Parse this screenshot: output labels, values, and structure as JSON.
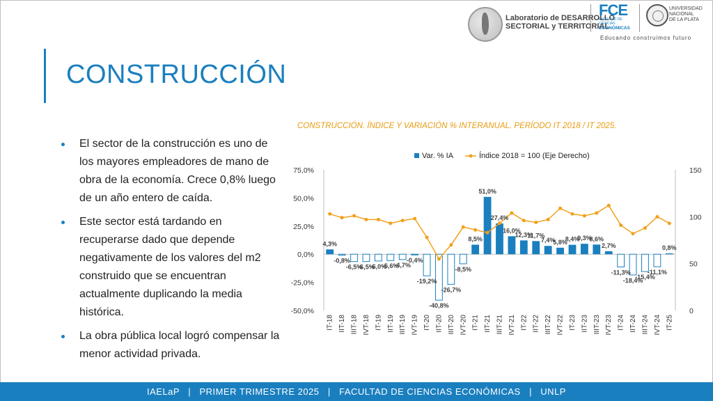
{
  "header": {
    "lab_name_line1": "Laboratorio de DESARROLLO",
    "lab_name_line2": "SECTORIAL y TERRITORIAL",
    "fce_mark": "FCE",
    "fce_sub": "FACULTAD DE CIENCIAS",
    "fce_eco": "ECONÓMICAS",
    "unlp_line1": "UNIVERSIDAD",
    "unlp_line2": "NACIONAL",
    "unlp_line3": "DE LA PLATA",
    "slogan": "Educando construimos futuro"
  },
  "page_title": "CONSTRUCCIÓN",
  "bullets": [
    "El sector de la construcción es uno de los mayores empleadores de mano de obra de la economía. Crece 0,8% luego de un año entero de caída.",
    "Este sector está tardando en recuperarse dado que depende negativamente de los valores del m2 construido que se encuentran actualmente duplicando la media histórica.",
    "La obra pública local logró compensar la menor actividad privada."
  ],
  "colors": {
    "accent": "#1a7fbf",
    "bar": "#1a7fbf",
    "line": "#f0a11b",
    "title": "#e89a10"
  },
  "chart_data": {
    "type": "bar+line",
    "title": "CONSTRUCCIÓN. ÍNDICE Y VARIACIÓN % INTERANUAL. PERÍODO IT 2018 / IT 2025.",
    "legend_placement": "top",
    "categories": [
      "IT-18",
      "IIT-18",
      "IIIT-18",
      "IVT-18",
      "IT-19",
      "IIT-19",
      "IIIT-19",
      "IVT-19",
      "IT-20",
      "IIT-20",
      "IIIT-20",
      "IVT-20",
      "IT-21",
      "IIT-21",
      "IIIT-21",
      "IVT-21",
      "IT-22",
      "IIT-22",
      "IIIT-22",
      "IVT-22",
      "IT-23",
      "IIT-23",
      "IIIT-23",
      "IVT-23",
      "IT-24",
      "IIT-24",
      "IIIT-24",
      "IVT-24",
      "IT-25"
    ],
    "y_left": {
      "ticks": [
        "75,0%",
        "50,0%",
        "25,0%",
        "0,0%",
        "-25,0%",
        "-50,0%"
      ],
      "range": [
        -50,
        75
      ]
    },
    "y_right": {
      "ticks": [
        "150",
        "100",
        "50",
        "0"
      ],
      "range": [
        0,
        150
      ]
    },
    "series": [
      {
        "name": "Var. % IA",
        "kind": "bar",
        "values": [
          4.3,
          -0.8,
          -6.5,
          -6.5,
          -6.0,
          -5.6,
          -4.7,
          -0.4,
          -19.2,
          -40.8,
          -26.7,
          -8.5,
          8.5,
          51.0,
          27.4,
          16.0,
          12.3,
          11.7,
          7.4,
          5.8,
          8.4,
          9.3,
          8.6,
          2.7,
          -11.3,
          -18.4,
          -15.4,
          -11.1,
          0.8
        ],
        "labels": [
          "4,3%",
          "-0,8%",
          "-6,5%",
          "-6,5%",
          "-6,0%",
          "-5,6%",
          "-4,7%",
          "-0,4%",
          "-19,2%",
          "-40,8%",
          "-26,7%",
          "-8,5%",
          "8,5%",
          "51,0%",
          "27,4%",
          "16,0%",
          "12,3%",
          "11,7%",
          "7,4%",
          "5,8%",
          "8,4%",
          "9,3%",
          "8,6%",
          "2,7%",
          "-11,3%",
          "-18,4%",
          "-15,4%",
          "-11,1%",
          "0,8%"
        ]
      },
      {
        "name": "Índice 2018 = 100 (Eje Derecho)",
        "kind": "line",
        "axis": "right",
        "values": [
          103,
          99,
          101,
          97,
          97,
          93,
          96,
          98,
          78,
          55,
          70,
          89,
          86,
          83,
          93,
          104,
          96,
          94,
          97,
          109,
          103,
          101,
          104,
          112,
          91,
          82,
          88,
          100,
          93
        ]
      }
    ]
  },
  "footer": {
    "item1": "IAELaP",
    "item2": "PRIMER TRIMESTRE 2025",
    "item3": "FACULTAD DE CIENCIAS ECONÓMICAS",
    "item4": "UNLP",
    "sep": "|"
  }
}
